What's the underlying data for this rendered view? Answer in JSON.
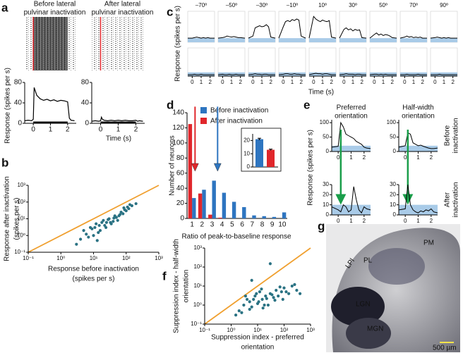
{
  "chart_data": [
    {
      "type": "psth",
      "panel": "a",
      "ylabel": "Response (spikes per s)",
      "xlabel": "Time (s)",
      "x": [
        -0.5,
        -0.3,
        -0.1,
        0,
        0.05,
        0.1,
        0.2,
        0.4,
        0.6,
        0.8,
        1.0,
        1.2,
        1.4,
        1.6,
        1.8,
        2.0,
        2.1,
        2.2,
        2.4
      ],
      "xlim": [
        -0.5,
        2.5
      ],
      "xticks": [
        0,
        1,
        2
      ],
      "ylim": [
        0,
        80
      ],
      "yticks": [
        0,
        40,
        80
      ],
      "plots": [
        {
          "title": [
            "Before lateral",
            "pulvinar inactivation"
          ],
          "values": [
            5,
            6,
            5,
            8,
            70,
            65,
            55,
            48,
            45,
            47,
            44,
            46,
            43,
            45,
            44,
            42,
            10,
            6,
            5
          ]
        },
        {
          "title": [
            "After lateral",
            "pulvinar inactivation"
          ],
          "values": [
            4,
            5,
            4,
            5,
            12,
            8,
            6,
            5,
            6,
            5,
            6,
            5,
            6,
            5,
            5,
            6,
            4,
            5,
            4
          ]
        }
      ]
    },
    {
      "type": "scatter",
      "panel": "b",
      "color": "#2a7283",
      "xlabel": [
        "Response before inactivation",
        "(spikes per s)"
      ],
      "ylabel": [
        "Response after inactivation",
        "(spikes per s)"
      ],
      "log": true,
      "xlim": [
        0.1,
        1000
      ],
      "ylim": [
        0.1,
        1000
      ],
      "xticks": [
        {
          "value": 0.1,
          "label": "10⁻¹"
        },
        {
          "value": 1,
          "label": "10⁰"
        },
        {
          "value": 10,
          "label": "10¹"
        },
        {
          "value": 100,
          "label": "10²"
        },
        {
          "value": 1000,
          "label": "10³"
        }
      ],
      "yticks": [
        {
          "value": 0.1,
          "label": "10⁻¹"
        },
        {
          "value": 1,
          "label": "10⁰"
        },
        {
          "value": 10,
          "label": "10¹"
        },
        {
          "value": 100,
          "label": "10²"
        },
        {
          "value": 1000,
          "label": "10³"
        }
      ],
      "x": [
        5,
        8,
        10,
        12,
        15,
        20,
        25,
        30,
        40,
        50,
        60,
        80,
        100,
        120,
        150,
        7,
        9,
        11,
        14,
        18,
        22,
        28,
        35,
        45,
        55,
        70,
        90,
        110,
        130,
        6,
        13,
        16,
        24,
        33,
        42,
        65,
        85,
        3,
        4,
        200
      ],
      "y": [
        2,
        3,
        1,
        5,
        4,
        8,
        6,
        10,
        7,
        12,
        15,
        20,
        30,
        40,
        60,
        0.8,
        2.5,
        3,
        1.5,
        6,
        4,
        9,
        5,
        15,
        8,
        25,
        35,
        50,
        70,
        1.2,
        0.5,
        2,
        3,
        6,
        11,
        18,
        45,
        0.3,
        0.6,
        80
      ]
    },
    {
      "type": "tuning-grid",
      "panel": "c",
      "titles": [
        "–70º",
        "–50º",
        "–30º",
        "–10º",
        "10º",
        "30º",
        "50º",
        "70º",
        "90º"
      ],
      "ylabel": "Response (spikes per s)",
      "xlabel": "Time (s)",
      "x": [
        -0.5,
        0,
        0.25,
        0.5,
        0.75,
        1,
        1.25,
        1.5,
        1.75,
        2,
        2.5
      ],
      "xlim": [
        -0.5,
        2.5
      ],
      "ylim": [
        0,
        60
      ],
      "xticks": [
        0,
        1,
        2
      ],
      "band": [
        0,
        8
      ],
      "band_color": "#a9cbe8",
      "rows": [
        [
          [
            8,
            8,
            9,
            10,
            9,
            8,
            9,
            8,
            9,
            8,
            8
          ],
          [
            8,
            9,
            10,
            12,
            11,
            10,
            11,
            10,
            9,
            9,
            8
          ],
          [
            8,
            12,
            28,
            30,
            32,
            30,
            31,
            34,
            30,
            10,
            8
          ],
          [
            8,
            30,
            40,
            42,
            40,
            44,
            42,
            45,
            43,
            12,
            8
          ],
          [
            8,
            50,
            45,
            42,
            40,
            43,
            41,
            40,
            42,
            10,
            8
          ],
          [
            8,
            25,
            28,
            24,
            26,
            22,
            25,
            23,
            24,
            9,
            8
          ],
          [
            8,
            15,
            18,
            14,
            16,
            13,
            15,
            14,
            12,
            9,
            8
          ],
          [
            8,
            10,
            12,
            10,
            11,
            9,
            10,
            9,
            10,
            8,
            8
          ],
          [
            8,
            9,
            10,
            9,
            8,
            9,
            8,
            9,
            8,
            8,
            8
          ]
        ],
        [
          [
            3,
            3,
            4,
            3,
            3,
            4,
            3,
            3,
            3,
            3,
            3
          ],
          [
            3,
            4,
            3,
            3,
            4,
            3,
            3,
            4,
            3,
            3,
            3
          ],
          [
            3,
            4,
            5,
            4,
            4,
            3,
            4,
            4,
            3,
            3,
            3
          ],
          [
            3,
            4,
            5,
            5,
            4,
            4,
            5,
            4,
            4,
            3,
            3
          ],
          [
            3,
            5,
            6,
            5,
            5,
            4,
            5,
            5,
            4,
            3,
            3
          ],
          [
            3,
            4,
            5,
            4,
            4,
            4,
            3,
            4,
            4,
            3,
            3
          ],
          [
            3,
            4,
            4,
            3,
            4,
            3,
            4,
            3,
            3,
            3,
            3
          ],
          [
            3,
            3,
            4,
            3,
            3,
            3,
            3,
            4,
            3,
            3,
            3
          ],
          [
            3,
            3,
            3,
            4,
            3,
            3,
            3,
            3,
            3,
            3,
            3
          ]
        ]
      ]
    },
    {
      "type": "bar",
      "panel": "d",
      "ylabel": "Number of neurons",
      "xlabel": "Ratio of peak-to-baseline response",
      "categories": [
        "1",
        "2",
        "3",
        "4",
        "5",
        "6",
        "7",
        "8",
        "9",
        "10"
      ],
      "ylim": [
        0,
        140
      ],
      "yticks": [
        0,
        20,
        40,
        60,
        80,
        100,
        120,
        140
      ],
      "series": [
        {
          "name": "Before inactivation",
          "color": "#2e75c0",
          "values": [
            27,
            38,
            50,
            34,
            22,
            15,
            4,
            3,
            2,
            8
          ]
        },
        {
          "name": "After inactivation",
          "color": "#e0262b",
          "values": [
            125,
            33,
            5,
            1,
            0,
            0,
            0,
            0,
            0,
            0
          ]
        }
      ],
      "inset": {
        "values": [
          21,
          13
        ],
        "errors": [
          0.7,
          0.5
        ],
        "ylim": [
          0,
          25
        ],
        "yticks": [
          0,
          10,
          20
        ]
      }
    },
    {
      "type": "response-grid",
      "panel": "e",
      "col_titles": [
        [
          "Preferred",
          "orientation"
        ],
        [
          "Half-width",
          "orientation"
        ]
      ],
      "row_labels": [
        [
          "Before",
          "inactivation"
        ],
        [
          "After",
          "inactivation"
        ]
      ],
      "ylabel": "Response (spikes per s)",
      "xlabel": "Time (s)",
      "x": [
        -0.5,
        0,
        0.2,
        0.4,
        0.6,
        0.8,
        1,
        1.2,
        1.4,
        1.6,
        1.8,
        2,
        2.2,
        2.5
      ],
      "xlim": [
        -0.5,
        2.5
      ],
      "xticks": [
        0,
        1,
        2
      ],
      "band_color": "#a9cbe8",
      "rows": [
        {
          "ylim": [
            0,
            110
          ],
          "yticks": [
            0,
            50,
            100
          ],
          "band": [
            0,
            20
          ],
          "values": [
            [
              15,
              18,
              100,
              85,
              60,
              55,
              50,
              45,
              35,
              30,
              25,
              15,
              12,
              10
            ],
            [
              15,
              20,
              65,
              60,
              30,
              25,
              20,
              22,
              18,
              15,
              12,
              10,
              10,
              12
            ]
          ]
        },
        {
          "ylim": [
            0,
            30
          ],
          "yticks": [
            0,
            10,
            20,
            30
          ],
          "band": [
            0,
            10
          ],
          "values": [
            [
              8,
              5,
              3,
              10,
              8,
              3,
              5,
              28,
              15,
              5,
              2,
              8,
              6,
              5
            ],
            [
              5,
              6,
              30,
              10,
              5,
              3,
              2,
              4,
              3,
              5,
              4,
              6,
              3,
              2
            ]
          ]
        }
      ]
    },
    {
      "type": "scatter",
      "panel": "f",
      "color": "#2a7283",
      "xlabel": [
        "Suppression index - preferred",
        "orientation"
      ],
      "ylabel": [
        "Suppression index - half-width",
        "orientation"
      ],
      "log": true,
      "xlim": [
        0.1,
        1000
      ],
      "ylim": [
        0.1,
        1000
      ],
      "xticks": [
        {
          "value": 0.1,
          "label": "10⁻¹"
        },
        {
          "value": 1,
          "label": "10⁰"
        },
        {
          "value": 10,
          "label": "10¹"
        },
        {
          "value": 100,
          "label": "10²"
        },
        {
          "value": 1000,
          "label": "10³"
        }
      ],
      "yticks": [
        {
          "value": 0.1,
          "label": "10⁻¹"
        },
        {
          "value": 1,
          "label": "10⁰"
        },
        {
          "value": 10,
          "label": "10¹"
        },
        {
          "value": 100,
          "label": "10²"
        },
        {
          "value": 1000,
          "label": "10³"
        }
      ],
      "x": [
        2,
        3,
        4,
        5,
        6,
        8,
        10,
        12,
        15,
        20,
        25,
        30,
        40,
        50,
        60,
        80,
        100,
        150,
        200,
        300,
        2.5,
        3.5,
        5,
        7,
        9,
        11,
        14,
        18,
        22,
        35,
        45,
        70,
        90,
        120,
        250,
        400,
        30,
        1.5,
        6,
        16
      ],
      "y": [
        0.5,
        1,
        2,
        1.5,
        0.8,
        3,
        1.2,
        5,
        2,
        3,
        1,
        4,
        2.5,
        6,
        3,
        5,
        8,
        4,
        10,
        6,
        0.4,
        3,
        0.6,
        2,
        4,
        1.5,
        7,
        1,
        2.2,
        3.5,
        1.8,
        9,
        2,
        5,
        12,
        4,
        150,
        0.3,
        20,
        0.7
      ]
    },
    {
      "type": "image",
      "panel": "g",
      "labels": [
        "PM",
        "PL",
        "LPl",
        "LGN",
        "MGN"
      ],
      "scale_bar": "500 µm"
    }
  ]
}
